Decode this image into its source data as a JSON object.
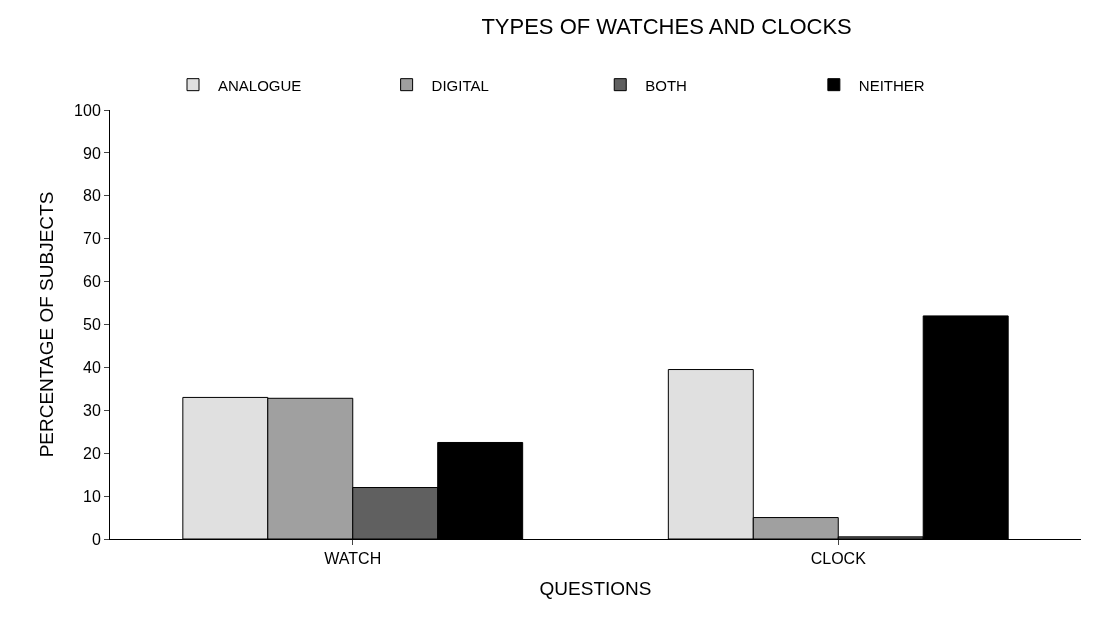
{
  "chart_data": {
    "type": "bar",
    "title": "TYPES OF WATCHES AND CLOCKS",
    "xlabel": "QUESTIONS",
    "ylabel": "PERCENTAGE OF SUBJECTS",
    "categories": [
      "WATCH",
      "CLOCK"
    ],
    "series": [
      {
        "name": "ANALOGUE",
        "color": "#e0e0e0",
        "values": [
          33,
          39.5
        ]
      },
      {
        "name": "DIGITAL",
        "color": "#a0a0a0",
        "values": [
          32.8,
          5
        ]
      },
      {
        "name": "BOTH",
        "color": "#606060",
        "values": [
          12,
          0.5
        ]
      },
      {
        "name": "NEITHER",
        "color": "#000000",
        "values": [
          22.5,
          52
        ]
      }
    ],
    "ylim": [
      0,
      100
    ],
    "yticks": [
      0,
      10,
      20,
      30,
      40,
      50,
      60,
      70,
      80,
      90,
      100
    ],
    "grid": false,
    "legend": "top"
  }
}
